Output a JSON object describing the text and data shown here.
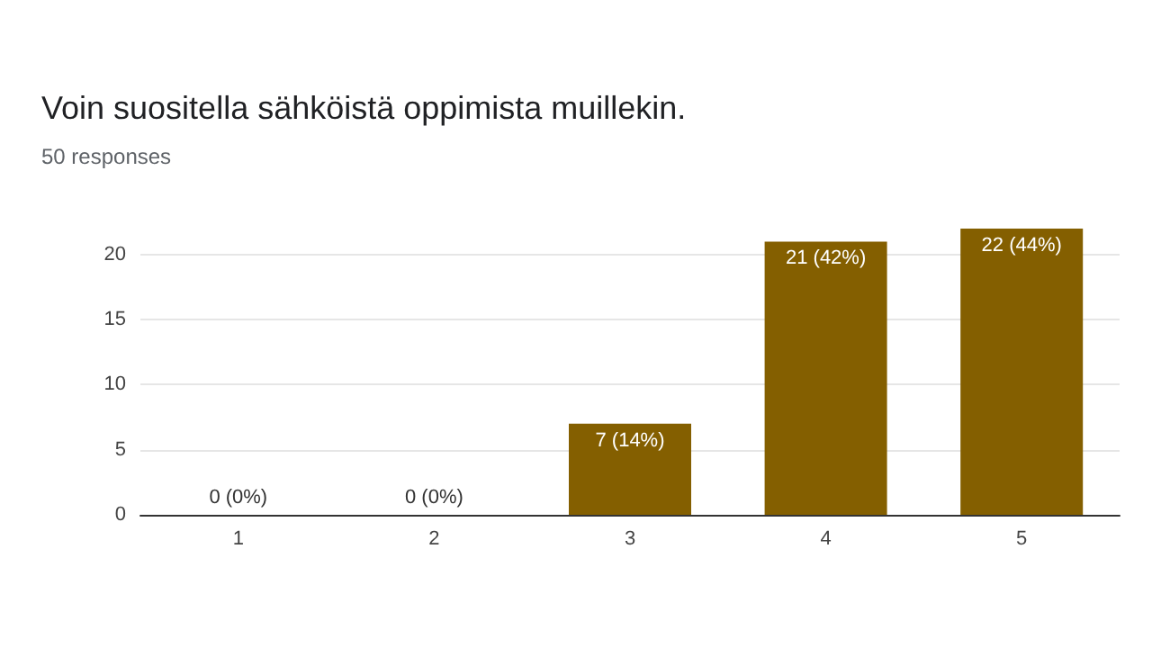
{
  "chart_data": {
    "type": "bar",
    "title": "Voin suositella sähköistä oppimista muillekin.",
    "subtitle": "50 responses",
    "categories": [
      "1",
      "2",
      "3",
      "4",
      "5"
    ],
    "values": [
      0,
      0,
      7,
      21,
      22
    ],
    "value_labels": [
      "0 (0%)",
      "0 (0%)",
      "7 (14%)",
      "21 (42%)",
      "22 (44%)"
    ],
    "color": "#845f00",
    "ylim": [
      0,
      22
    ],
    "yticks": [
      0,
      5,
      10,
      15,
      20
    ],
    "grid": "y"
  }
}
